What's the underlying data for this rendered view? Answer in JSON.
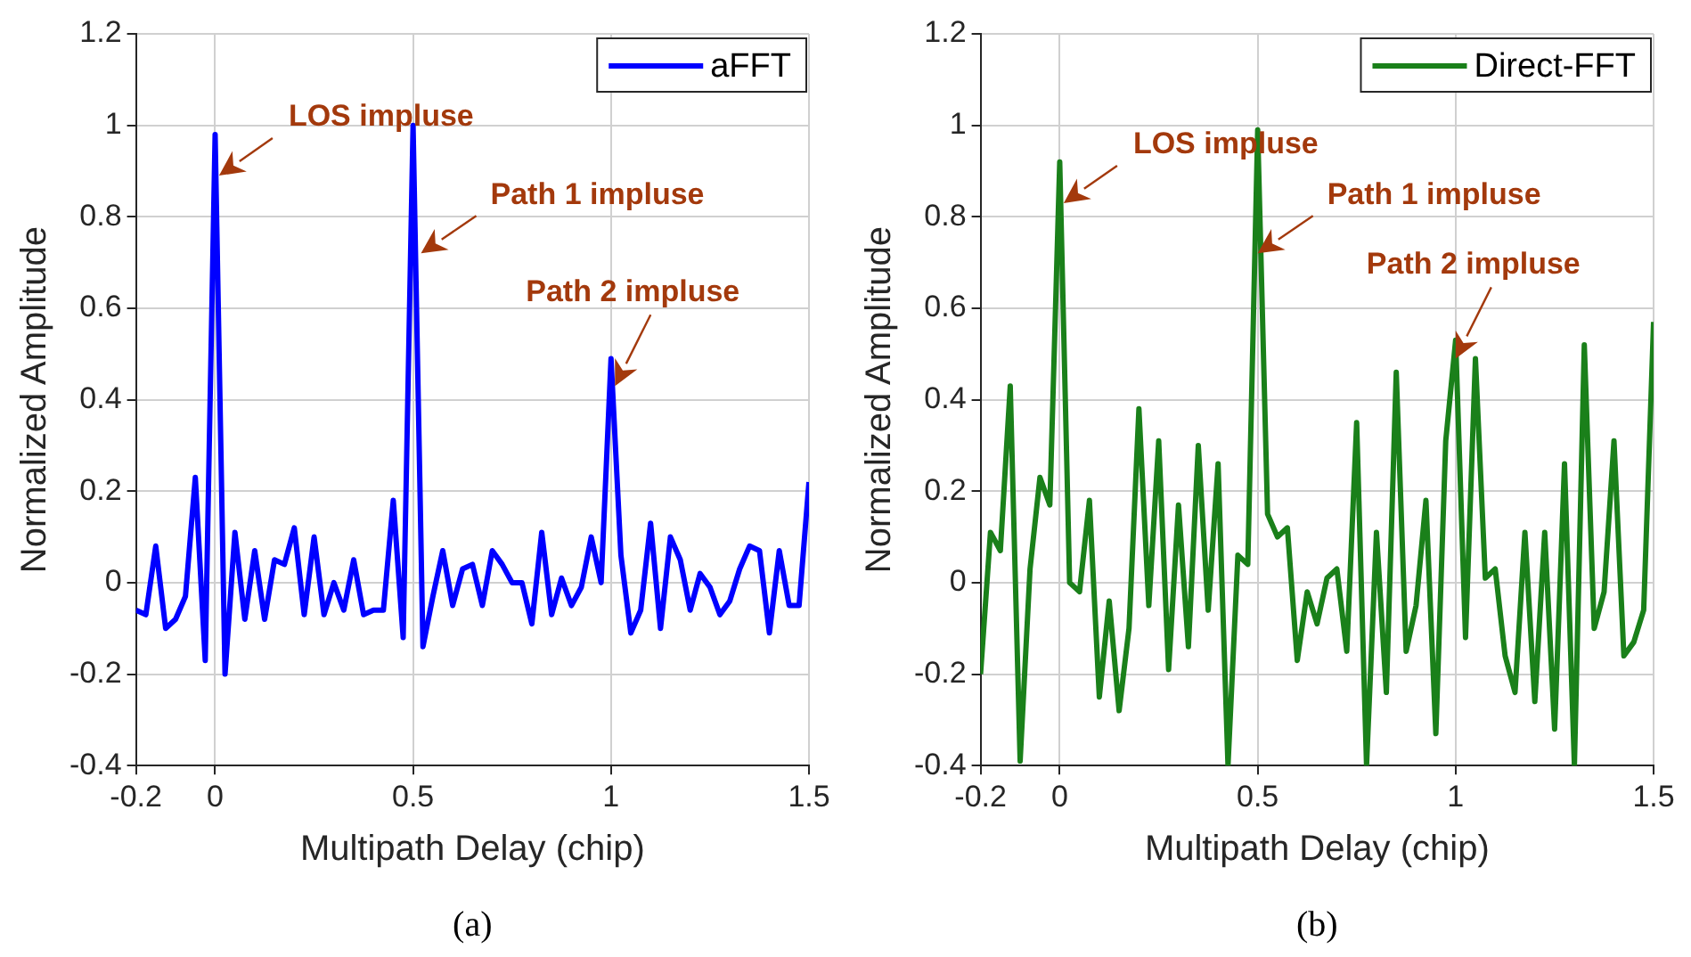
{
  "chart_data": [
    {
      "type": "line",
      "xlabel": "Multipath Delay (chip)",
      "ylabel": "Normalized Amplitude",
      "xlim": [
        -0.2,
        1.5
      ],
      "xticks": [
        -0.2,
        0,
        0.5,
        1,
        1.5
      ],
      "ylim": [
        -0.4,
        1.2
      ],
      "yticks": [
        -0.4,
        -0.2,
        0,
        0.2,
        0.4,
        0.6,
        0.8,
        1,
        1.2
      ],
      "grid": true,
      "legend": "top right",
      "marker": "none",
      "line_style": "solid",
      "x": [
        -0.2,
        -0.175,
        -0.15,
        -0.125,
        -0.1,
        -0.075,
        -0.05,
        -0.025,
        0,
        0.025,
        0.05,
        0.075,
        0.1,
        0.125,
        0.15,
        0.175,
        0.2,
        0.225,
        0.25,
        0.275,
        0.3,
        0.325,
        0.35,
        0.375,
        0.4,
        0.425,
        0.45,
        0.475,
        0.5,
        0.525,
        0.55,
        0.575,
        0.6,
        0.625,
        0.65,
        0.675,
        0.7,
        0.725,
        0.75,
        0.775,
        0.8,
        0.825,
        0.85,
        0.875,
        0.9,
        0.925,
        0.95,
        0.975,
        1,
        1.025,
        1.05,
        1.075,
        1.1,
        1.125,
        1.15,
        1.175,
        1.2,
        1.225,
        1.25,
        1.275,
        1.3,
        1.325,
        1.35,
        1.375,
        1.4,
        1.425,
        1.45,
        1.475,
        1.5
      ],
      "series": [
        {
          "name": "aFFT",
          "color": "#0000ff",
          "values": [
            -0.06,
            -0.07,
            0.08,
            -0.1,
            -0.08,
            -0.03,
            0.23,
            -0.17,
            0.98,
            -0.2,
            0.11,
            -0.08,
            0.07,
            -0.08,
            0.05,
            0.04,
            0.12,
            -0.07,
            0.1,
            -0.07,
            0,
            -0.06,
            0.05,
            -0.07,
            -0.06,
            -0.06,
            0.18,
            -0.12,
            1,
            -0.14,
            -0.03,
            0.07,
            -0.05,
            0.03,
            0.04,
            -0.05,
            0.07,
            0.04,
            0,
            0,
            -0.09,
            0.11,
            -0.07,
            0.01,
            -0.05,
            -0.01,
            0.1,
            0,
            0.49,
            0.06,
            -0.11,
            -0.06,
            0.13,
            -0.1,
            0.1,
            0.05,
            -0.06,
            0.02,
            -0.01,
            -0.07,
            -0.04,
            0.03,
            0.08,
            0.07,
            -0.11,
            0.07,
            -0.05,
            -0.05,
            0.22
          ]
        }
      ],
      "annotations": [
        {
          "text": "LOS impluse",
          "x": 0.01,
          "y": 0.89
        },
        {
          "text": "Path 1 impluse",
          "x": 0.52,
          "y": 0.72
        },
        {
          "text": "Path 2 impluse",
          "x": 1.01,
          "y": 0.43
        },
        "(a)"
      ]
    },
    {
      "type": "line",
      "xlabel": "Multipath Delay (chip)",
      "ylabel": "Normalized Amplitude",
      "xlim": [
        -0.2,
        1.5
      ],
      "xticks": [
        -0.2,
        0,
        0.5,
        1,
        1.5
      ],
      "ylim": [
        -0.4,
        1.2
      ],
      "yticks": [
        -0.4,
        -0.2,
        0,
        0.2,
        0.4,
        0.6,
        0.8,
        1,
        1.2
      ],
      "grid": true,
      "legend": "top right",
      "marker": "none",
      "line_style": "solid",
      "x": [
        -0.2,
        -0.175,
        -0.15,
        -0.125,
        -0.1,
        -0.075,
        -0.05,
        -0.025,
        0,
        0.025,
        0.05,
        0.075,
        0.1,
        0.125,
        0.15,
        0.175,
        0.2,
        0.225,
        0.25,
        0.275,
        0.3,
        0.325,
        0.35,
        0.375,
        0.4,
        0.425,
        0.45,
        0.475,
        0.5,
        0.525,
        0.55,
        0.575,
        0.6,
        0.625,
        0.65,
        0.675,
        0.7,
        0.725,
        0.75,
        0.775,
        0.8,
        0.825,
        0.85,
        0.875,
        0.9,
        0.925,
        0.95,
        0.975,
        1,
        1.025,
        1.05,
        1.075,
        1.1,
        1.125,
        1.15,
        1.175,
        1.2,
        1.225,
        1.25,
        1.275,
        1.3,
        1.325,
        1.35,
        1.375,
        1.4,
        1.425,
        1.45,
        1.475,
        1.5
      ],
      "series": [
        {
          "name": "Direct-FFT",
          "color": "#1a801a",
          "values": [
            -0.2,
            0.11,
            0.07,
            0.43,
            -0.39,
            0.03,
            0.23,
            0.17,
            0.92,
            0,
            -0.02,
            0.18,
            -0.25,
            -0.04,
            -0.28,
            -0.1,
            0.38,
            -0.05,
            0.31,
            -0.19,
            0.17,
            -0.14,
            0.3,
            -0.06,
            0.26,
            -0.4,
            0.06,
            0.04,
            0.99,
            0.15,
            0.1,
            0.12,
            -0.17,
            -0.02,
            -0.09,
            0.01,
            0.03,
            -0.15,
            0.35,
            -0.4,
            0.11,
            -0.24,
            0.46,
            -0.15,
            -0.05,
            0.18,
            -0.33,
            0.31,
            0.53,
            -0.12,
            0.49,
            0.01,
            0.03,
            -0.16,
            -0.24,
            0.11,
            -0.26,
            0.11,
            -0.32,
            0.26,
            -0.4,
            0.52,
            -0.1,
            -0.02,
            0.31,
            -0.16,
            -0.13,
            -0.06,
            0.57
          ]
        }
      ],
      "annotations": [
        {
          "text": "LOS impluse",
          "x": 0.01,
          "y": 0.83
        },
        {
          "text": "Path 1 impluse",
          "x": 0.5,
          "y": 0.72
        },
        {
          "text": "Path 2 impluse",
          "x": 1,
          "y": 0.49
        },
        "(b)"
      ]
    }
  ]
}
